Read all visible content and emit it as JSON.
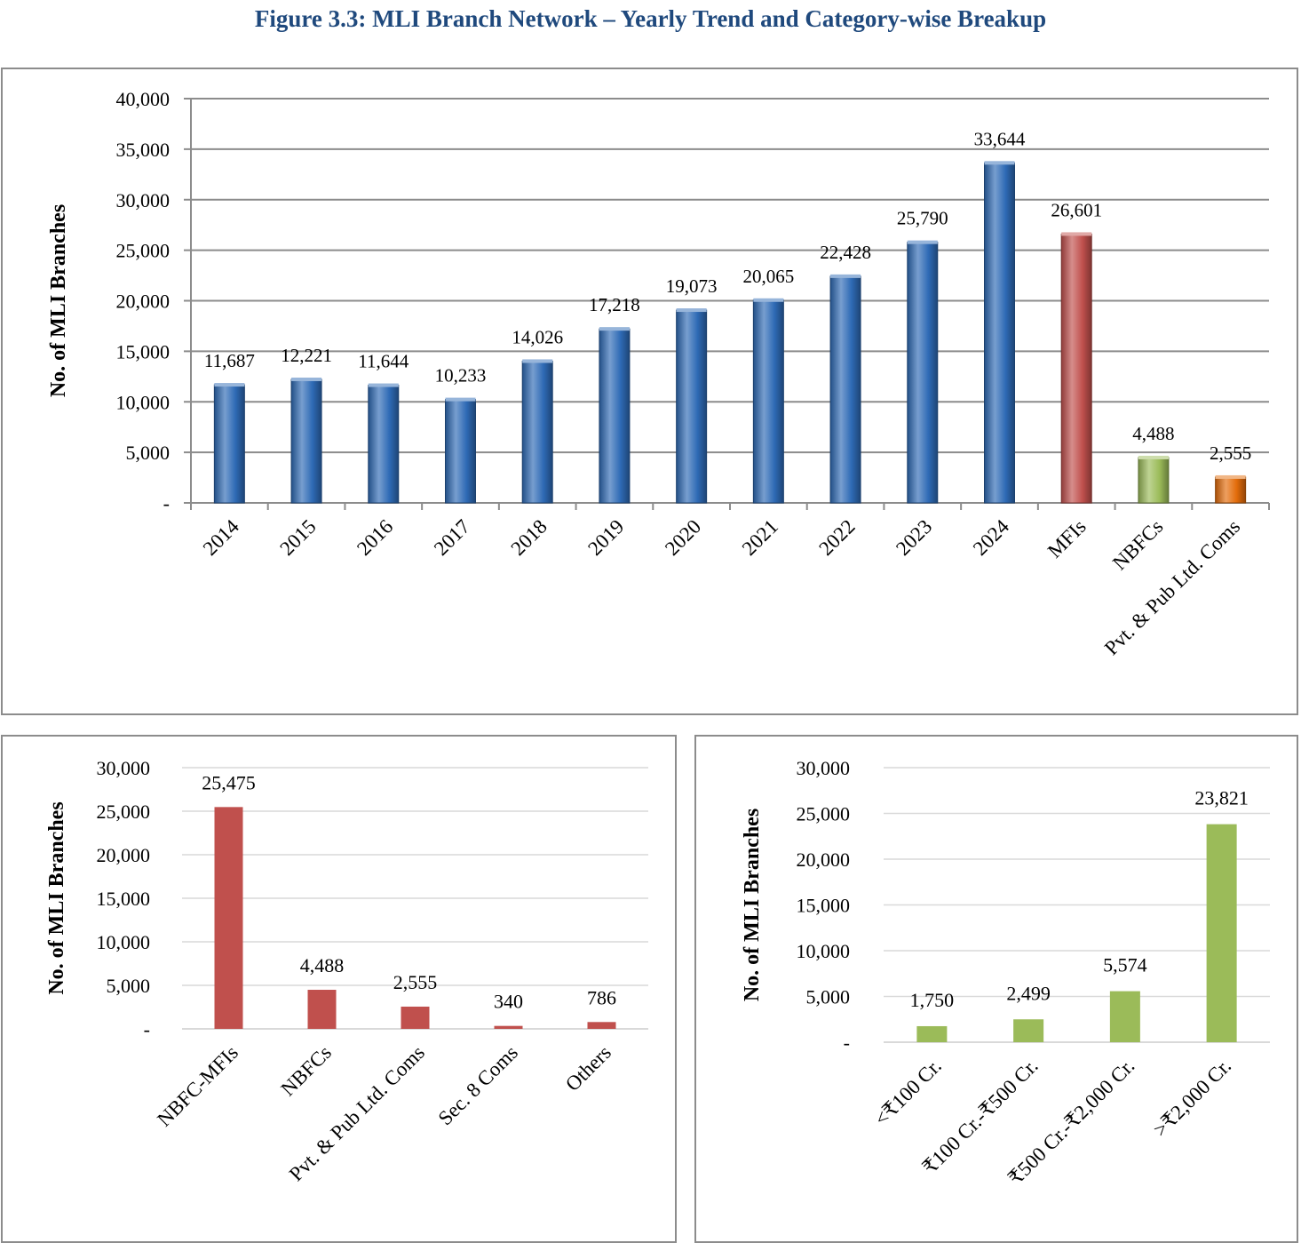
{
  "figure_title": "Figure 3.3: MLI Branch Network – Yearly Trend and Category-wise Breakup",
  "chart_data": [
    {
      "type": "bar",
      "ylabel": "No. of MLI Branches",
      "ylim": [
        0,
        40000
      ],
      "yticks": [
        "-",
        "5,000",
        "10,000",
        "15,000",
        "20,000",
        "25,000",
        "30,000",
        "35,000",
        "40,000"
      ],
      "grid": true,
      "style": "3d-gradient",
      "categories": [
        "2014",
        "2015",
        "2016",
        "2017",
        "2018",
        "2019",
        "2020",
        "2021",
        "2022",
        "2023",
        "2024",
        "MFIs",
        "NBFCs",
        "Pvt. & Pub Ltd. Coms"
      ],
      "values": [
        11687,
        12221,
        11644,
        10233,
        14026,
        17218,
        19073,
        20065,
        22428,
        25790,
        33644,
        26601,
        4488,
        2555
      ],
      "value_labels": [
        "11,687",
        "12,221",
        "11,644",
        "10,233",
        "14,026",
        "17,218",
        "19,073",
        "20,065",
        "22,428",
        "25,790",
        "33,644",
        "26,601",
        "4,488",
        "2,555"
      ],
      "colors": [
        "#2e6ab5",
        "#2e6ab5",
        "#2e6ab5",
        "#2e6ab5",
        "#2e6ab5",
        "#2e6ab5",
        "#2e6ab5",
        "#2e6ab5",
        "#2e6ab5",
        "#2e6ab5",
        "#2e6ab5",
        "#c0504d",
        "#9bbb59",
        "#e36c0a"
      ]
    },
    {
      "type": "bar",
      "ylabel": "No. of MLI Branches",
      "ylim": [
        0,
        30000
      ],
      "yticks": [
        "-",
        "5,000",
        "10,000",
        "15,000",
        "20,000",
        "25,000",
        "30,000"
      ],
      "grid": true,
      "style": "flat",
      "categories": [
        "NBFC-MFIs",
        "NBFCs",
        "Pvt. & Pub Ltd. Coms",
        "Sec. 8 Coms",
        "Others"
      ],
      "values": [
        25475,
        4488,
        2555,
        340,
        786
      ],
      "value_labels": [
        "25,475",
        "4,488",
        "2,555",
        "340",
        "786"
      ],
      "colors": [
        "#c0504d"
      ]
    },
    {
      "type": "bar",
      "ylabel": "No. of MLI Branches",
      "ylim": [
        0,
        30000
      ],
      "yticks": [
        "-",
        "5,000",
        "10,000",
        "15,000",
        "20,000",
        "25,000",
        "30,000"
      ],
      "grid": true,
      "style": "flat",
      "categories": [
        "<₹100 Cr.",
        "₹100 Cr.-₹500 Cr.",
        "₹500 Cr.-₹2,000 Cr.",
        ">₹2,000 Cr."
      ],
      "values": [
        1750,
        2499,
        5574,
        23821
      ],
      "value_labels": [
        "1,750",
        "2,499",
        "5,574",
        "23,821"
      ],
      "colors": [
        "#9bbb59"
      ]
    }
  ]
}
